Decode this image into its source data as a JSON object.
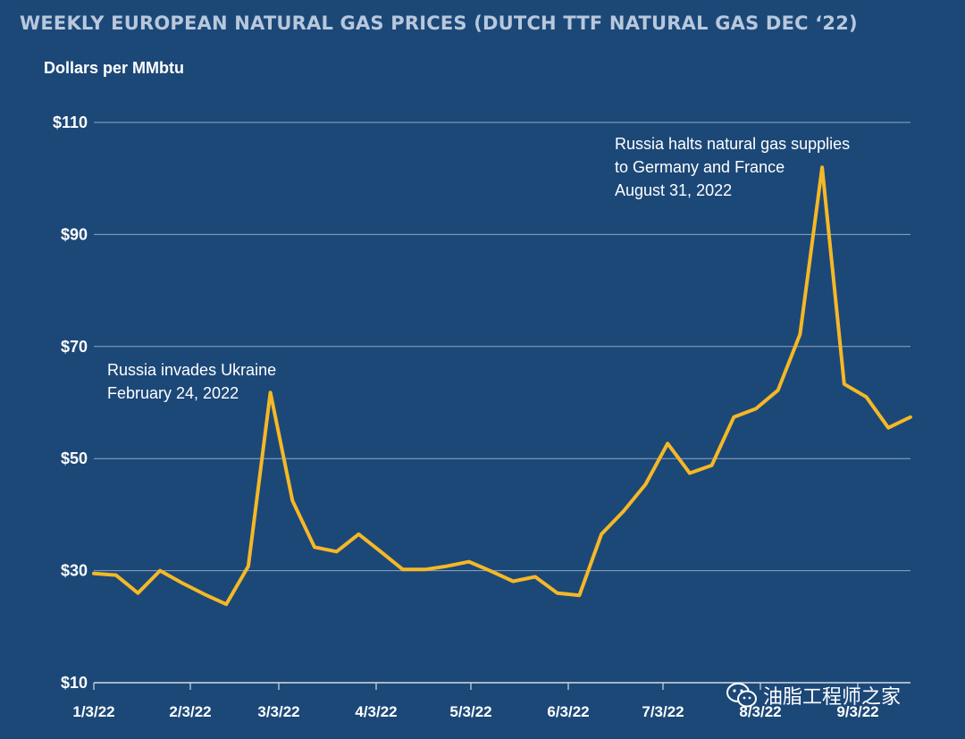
{
  "chart_data": {
    "type": "line",
    "title": "WEEKLY EUROPEAN NATURAL GAS PRICES (DUTCH TTF NATURAL GAS DEC ‘22)",
    "ylabel": "Dollars per MMbtu",
    "xlabel": "",
    "ylim": [
      10,
      110
    ],
    "yticks": [
      10,
      30,
      50,
      70,
      90,
      110
    ],
    "ytick_labels": [
      "$10",
      "$30",
      "$50",
      "$70",
      "$90",
      "$110"
    ],
    "xtick_labels": [
      "1/3/22",
      "2/3/22",
      "3/3/22",
      "4/3/22",
      "5/3/22",
      "6/3/22",
      "7/3/22",
      "8/3/22",
      "9/3/22"
    ],
    "grid": true,
    "series": [
      {
        "name": "Dutch TTF Natural Gas Dec '22",
        "color": "#f5b825",
        "values": [
          29.5,
          29.2,
          26.0,
          30.0,
          27.8,
          25.8,
          24.0,
          30.8,
          61.8,
          42.5,
          34.2,
          33.4,
          36.5,
          33.4,
          30.2,
          30.2,
          30.8,
          31.6,
          29.9,
          28.1,
          28.9,
          26.0,
          25.6,
          36.5,
          40.6,
          45.4,
          52.7,
          47.4,
          48.8,
          57.4,
          58.9,
          62.2,
          72.2,
          102.0,
          63.3,
          61.0,
          55.5,
          57.4
        ]
      }
    ],
    "annotations": [
      {
        "lines": [
          "Russia invades Ukraine",
          "February 24, 2022"
        ],
        "point_index": 8
      },
      {
        "lines": [
          "Russia halts natural gas supplies",
          "to Germany and France",
          "August 31, 2022"
        ],
        "point_index": 33
      }
    ]
  },
  "watermark": {
    "icon": "wechat-icon",
    "text": "油脂工程师之家"
  }
}
